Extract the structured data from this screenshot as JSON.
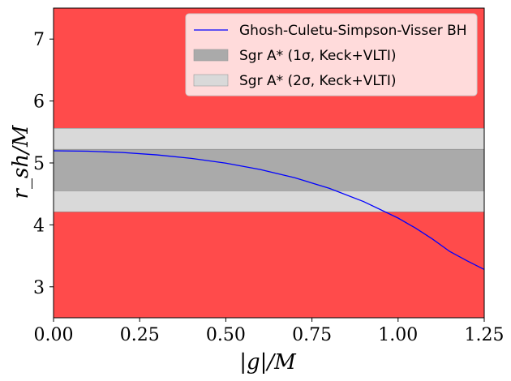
{
  "chart_data": {
    "type": "line",
    "xlabel": "|g|/M",
    "ylabel": "r_sh/M",
    "xlim": [
      0,
      1.25
    ],
    "ylim": [
      2.5,
      7.5
    ],
    "xticks": [
      0,
      0.25,
      0.5,
      0.75,
      1.0,
      1.25
    ],
    "xtick_labels": [
      "0.00",
      "0.25",
      "0.50",
      "0.75",
      "1.00",
      "1.25"
    ],
    "yticks": [
      3,
      4,
      5,
      6,
      7
    ],
    "ytick_labels": [
      "3",
      "4",
      "5",
      "6",
      "7"
    ],
    "grid": false,
    "legend_position": "top-right",
    "background_color": "#ff4b4b",
    "bands": [
      {
        "name": "Sgr A* (2σ, Keck+VLTI)",
        "ymin": 4.21,
        "ymax": 5.56,
        "color": "#d9d9d9"
      },
      {
        "name": "Sgr A* (1σ, Keck+VLTI)",
        "ymin": 4.55,
        "ymax": 5.22,
        "color": "#aaaaaa"
      }
    ],
    "series": [
      {
        "name": "Ghosh-Culetu-Simpson-Visser BH",
        "color": "#0000ff",
        "x": [
          0.0,
          0.1,
          0.2,
          0.3,
          0.4,
          0.5,
          0.6,
          0.7,
          0.8,
          0.9,
          1.0,
          1.05,
          1.1,
          1.15,
          1.2,
          1.25
        ],
        "y": [
          5.196,
          5.19,
          5.168,
          5.13,
          5.074,
          4.997,
          4.894,
          4.761,
          4.591,
          4.376,
          4.11,
          3.95,
          3.77,
          3.57,
          3.42,
          3.28
        ]
      }
    ],
    "legend": [
      {
        "label": "Ghosh-Culetu-Simpson-Visser BH",
        "kind": "line",
        "color": "#0000ff"
      },
      {
        "label": "Sgr A* (1σ, Keck+VLTI)",
        "kind": "patch",
        "color": "#aaaaaa"
      },
      {
        "label": "Sgr A* (2σ, Keck+VLTI)",
        "kind": "patch",
        "color": "#d9d9d9"
      }
    ]
  }
}
